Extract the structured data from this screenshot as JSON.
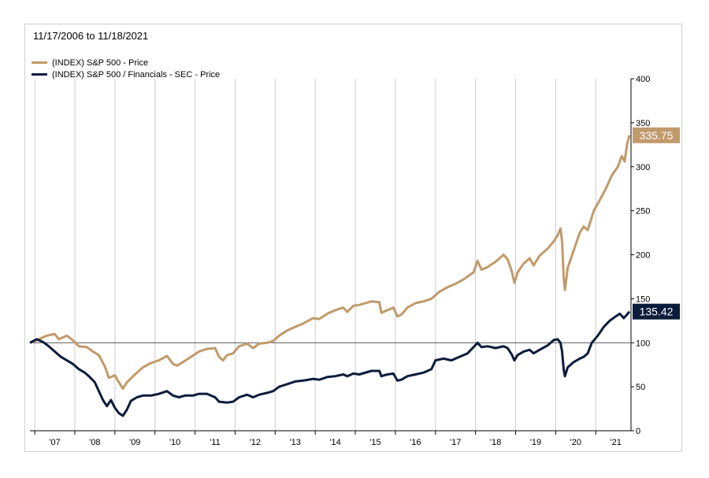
{
  "date_range": "11/17/2006 to 11/18/2021",
  "colors": {
    "sp500": "#c19a6b",
    "financials": "#0c1c3c",
    "grid": "#cccccc",
    "baseline": "#555555"
  },
  "chart_data": {
    "type": "line",
    "title": "",
    "xlabel": "",
    "ylabel": "",
    "x_tick_labels": [
      "'07",
      "'08",
      "'09",
      "'10",
      "'11",
      "'12",
      "'13",
      "'14",
      "'15",
      "'16",
      "'17",
      "'18",
      "'19",
      "'20",
      "'21"
    ],
    "x_tick_values": [
      2007,
      2008,
      2009,
      2010,
      2011,
      2012,
      2013,
      2014,
      2015,
      2016,
      2017,
      2018,
      2019,
      2020,
      2021
    ],
    "xlim": [
      2006.88,
      2021.88
    ],
    "ylim": [
      0,
      400
    ],
    "y_ticks": [
      0,
      50,
      100,
      150,
      200,
      250,
      300,
      350,
      400
    ],
    "y_tick_labels": [
      "0",
      "50",
      "100",
      "150",
      "200",
      "250",
      "300",
      "350",
      "400"
    ],
    "reference_line": 100,
    "grid": "vertical",
    "legend_position": "top-left",
    "series": [
      {
        "name": "(INDEX) S&P 500 - Price",
        "color_key": "sp500",
        "end_label": "335.75",
        "points": [
          [
            2006.88,
            100
          ],
          [
            2007.1,
            104
          ],
          [
            2007.3,
            108
          ],
          [
            2007.5,
            110
          ],
          [
            2007.6,
            104
          ],
          [
            2007.8,
            108
          ],
          [
            2007.95,
            103
          ],
          [
            2008.1,
            96
          ],
          [
            2008.3,
            95
          ],
          [
            2008.45,
            90
          ],
          [
            2008.6,
            86
          ],
          [
            2008.75,
            73
          ],
          [
            2008.85,
            60
          ],
          [
            2009.0,
            63
          ],
          [
            2009.1,
            55
          ],
          [
            2009.2,
            48
          ],
          [
            2009.3,
            55
          ],
          [
            2009.5,
            64
          ],
          [
            2009.7,
            72
          ],
          [
            2009.9,
            77
          ],
          [
            2010.1,
            80
          ],
          [
            2010.3,
            85
          ],
          [
            2010.45,
            76
          ],
          [
            2010.55,
            74
          ],
          [
            2010.7,
            78
          ],
          [
            2010.9,
            84
          ],
          [
            2011.1,
            90
          ],
          [
            2011.3,
            93
          ],
          [
            2011.5,
            94
          ],
          [
            2011.6,
            84
          ],
          [
            2011.7,
            80
          ],
          [
            2011.8,
            86
          ],
          [
            2011.95,
            88
          ],
          [
            2012.1,
            96
          ],
          [
            2012.3,
            99
          ],
          [
            2012.45,
            94
          ],
          [
            2012.6,
            99
          ],
          [
            2012.8,
            100
          ],
          [
            2012.95,
            102
          ],
          [
            2013.1,
            108
          ],
          [
            2013.3,
            114
          ],
          [
            2013.5,
            118
          ],
          [
            2013.7,
            122
          ],
          [
            2013.95,
            128
          ],
          [
            2014.1,
            127
          ],
          [
            2014.3,
            133
          ],
          [
            2014.5,
            137
          ],
          [
            2014.7,
            140
          ],
          [
            2014.8,
            135
          ],
          [
            2014.95,
            142
          ],
          [
            2015.1,
            143
          ],
          [
            2015.4,
            147
          ],
          [
            2015.6,
            146
          ],
          [
            2015.65,
            134
          ],
          [
            2015.8,
            137
          ],
          [
            2015.95,
            140
          ],
          [
            2016.05,
            130
          ],
          [
            2016.15,
            132
          ],
          [
            2016.3,
            140
          ],
          [
            2016.5,
            145
          ],
          [
            2016.7,
            147
          ],
          [
            2016.9,
            150
          ],
          [
            2017.1,
            158
          ],
          [
            2017.3,
            163
          ],
          [
            2017.5,
            167
          ],
          [
            2017.7,
            172
          ],
          [
            2017.95,
            180
          ],
          [
            2018.05,
            193
          ],
          [
            2018.15,
            183
          ],
          [
            2018.3,
            186
          ],
          [
            2018.5,
            192
          ],
          [
            2018.7,
            200
          ],
          [
            2018.8,
            195
          ],
          [
            2018.9,
            182
          ],
          [
            2018.97,
            168
          ],
          [
            2019.05,
            180
          ],
          [
            2019.2,
            190
          ],
          [
            2019.35,
            196
          ],
          [
            2019.45,
            188
          ],
          [
            2019.6,
            199
          ],
          [
            2019.8,
            207
          ],
          [
            2019.95,
            215
          ],
          [
            2020.05,
            222
          ],
          [
            2020.12,
            230
          ],
          [
            2020.16,
            215
          ],
          [
            2020.2,
            175
          ],
          [
            2020.23,
            160
          ],
          [
            2020.3,
            185
          ],
          [
            2020.45,
            205
          ],
          [
            2020.6,
            225
          ],
          [
            2020.7,
            232
          ],
          [
            2020.8,
            228
          ],
          [
            2020.95,
            250
          ],
          [
            2021.1,
            262
          ],
          [
            2021.25,
            275
          ],
          [
            2021.4,
            290
          ],
          [
            2021.55,
            300
          ],
          [
            2021.65,
            312
          ],
          [
            2021.72,
            306
          ],
          [
            2021.78,
            325
          ],
          [
            2021.84,
            335.75
          ]
        ]
      },
      {
        "name": "(INDEX) S&P 500 / Financials - SEC - Price",
        "color_key": "financials",
        "end_label": "135.42",
        "points": [
          [
            2006.88,
            100
          ],
          [
            2007.05,
            104
          ],
          [
            2007.2,
            101
          ],
          [
            2007.35,
            96
          ],
          [
            2007.5,
            90
          ],
          [
            2007.65,
            84
          ],
          [
            2007.8,
            80
          ],
          [
            2007.95,
            76
          ],
          [
            2008.1,
            70
          ],
          [
            2008.25,
            66
          ],
          [
            2008.35,
            62
          ],
          [
            2008.5,
            55
          ],
          [
            2008.6,
            45
          ],
          [
            2008.7,
            35
          ],
          [
            2008.8,
            28
          ],
          [
            2008.9,
            35
          ],
          [
            2009.0,
            26
          ],
          [
            2009.1,
            20
          ],
          [
            2009.2,
            17
          ],
          [
            2009.3,
            24
          ],
          [
            2009.4,
            34
          ],
          [
            2009.55,
            38
          ],
          [
            2009.7,
            40
          ],
          [
            2009.9,
            40
          ],
          [
            2010.1,
            42
          ],
          [
            2010.3,
            45
          ],
          [
            2010.45,
            40
          ],
          [
            2010.6,
            38
          ],
          [
            2010.75,
            40
          ],
          [
            2010.95,
            40
          ],
          [
            2011.1,
            42
          ],
          [
            2011.3,
            42
          ],
          [
            2011.5,
            38
          ],
          [
            2011.6,
            33
          ],
          [
            2011.8,
            32
          ],
          [
            2011.95,
            33
          ],
          [
            2012.1,
            38
          ],
          [
            2012.3,
            41
          ],
          [
            2012.45,
            38
          ],
          [
            2012.6,
            41
          ],
          [
            2012.8,
            43
          ],
          [
            2012.95,
            45
          ],
          [
            2013.1,
            50
          ],
          [
            2013.3,
            53
          ],
          [
            2013.5,
            56
          ],
          [
            2013.7,
            57
          ],
          [
            2013.95,
            59
          ],
          [
            2014.1,
            58
          ],
          [
            2014.3,
            61
          ],
          [
            2014.5,
            62
          ],
          [
            2014.7,
            64
          ],
          [
            2014.8,
            62
          ],
          [
            2014.95,
            65
          ],
          [
            2015.1,
            64
          ],
          [
            2015.4,
            68
          ],
          [
            2015.6,
            68
          ],
          [
            2015.65,
            62
          ],
          [
            2015.8,
            64
          ],
          [
            2015.95,
            65
          ],
          [
            2016.05,
            57
          ],
          [
            2016.15,
            58
          ],
          [
            2016.3,
            62
          ],
          [
            2016.5,
            64
          ],
          [
            2016.7,
            66
          ],
          [
            2016.9,
            70
          ],
          [
            2017.0,
            80
          ],
          [
            2017.2,
            82
          ],
          [
            2017.4,
            80
          ],
          [
            2017.6,
            84
          ],
          [
            2017.8,
            88
          ],
          [
            2017.95,
            95
          ],
          [
            2018.05,
            100
          ],
          [
            2018.15,
            95
          ],
          [
            2018.3,
            96
          ],
          [
            2018.5,
            94
          ],
          [
            2018.7,
            96
          ],
          [
            2018.8,
            94
          ],
          [
            2018.9,
            87
          ],
          [
            2018.97,
            80
          ],
          [
            2019.05,
            86
          ],
          [
            2019.2,
            90
          ],
          [
            2019.35,
            92
          ],
          [
            2019.45,
            88
          ],
          [
            2019.6,
            92
          ],
          [
            2019.8,
            97
          ],
          [
            2019.95,
            103
          ],
          [
            2020.05,
            104
          ],
          [
            2020.12,
            100
          ],
          [
            2020.16,
            90
          ],
          [
            2020.2,
            70
          ],
          [
            2020.23,
            62
          ],
          [
            2020.3,
            72
          ],
          [
            2020.45,
            78
          ],
          [
            2020.6,
            82
          ],
          [
            2020.7,
            84
          ],
          [
            2020.8,
            88
          ],
          [
            2020.9,
            100
          ],
          [
            2021.05,
            108
          ],
          [
            2021.2,
            118
          ],
          [
            2021.35,
            125
          ],
          [
            2021.5,
            130
          ],
          [
            2021.6,
            133
          ],
          [
            2021.7,
            128
          ],
          [
            2021.78,
            132
          ],
          [
            2021.84,
            135.42
          ]
        ]
      }
    ]
  }
}
